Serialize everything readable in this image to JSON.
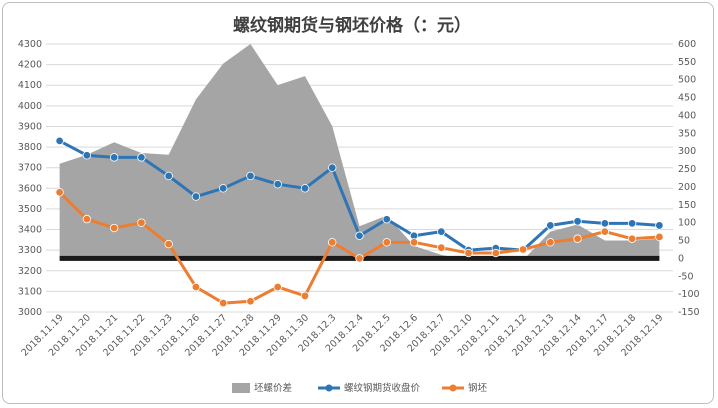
{
  "chart_data": {
    "type": "line",
    "title": "螺纹钢期货与钢坯价格（：元）",
    "categories": [
      "2018.11.19",
      "2018.11.20",
      "2018.11.21",
      "2018.11.22",
      "2018.11.23",
      "2018.11.26",
      "2018.11.27",
      "2018.11.28",
      "2018.11.29",
      "2018.11.30",
      "2018.12.3",
      "2018.12.4",
      "2018.12.5",
      "2018.12.6",
      "2018.12.7",
      "2018.12.10",
      "2018.12.11",
      "2018.12.12",
      "2018.12.13",
      "2018.12.14",
      "2018.12.17",
      "2018.12.18",
      "2018.12.19"
    ],
    "left_axis": {
      "min": 3000,
      "max": 4300,
      "step": 100
    },
    "right_axis": {
      "min": -150,
      "max": 600,
      "step": 50
    },
    "series": [
      {
        "name": "坯螺价差",
        "type": "area",
        "axis": "right",
        "color": "#a5a5a5",
        "values": [
          265,
          290,
          325,
          295,
          290,
          445,
          545,
          600,
          485,
          510,
          370,
          90,
          120,
          35,
          10,
          -5,
          -5,
          -5,
          75,
          95,
          50,
          50,
          55
        ]
      },
      {
        "name": "螺纹钢期货收盘价",
        "type": "line",
        "axis": "left",
        "color": "#2e75b6",
        "values": [
          3830,
          3760,
          3750,
          3750,
          3660,
          3560,
          3600,
          3660,
          3620,
          3600,
          3700,
          3370,
          3450,
          3370,
          3390,
          3300,
          3310,
          3300,
          3420,
          3440,
          3430,
          3430,
          3420
        ]
      },
      {
        "name": "钢坯",
        "type": "line",
        "axis": "right",
        "color": "#ed7d31",
        "values": [
          185,
          110,
          85,
          100,
          40,
          -80,
          -125,
          -120,
          -80,
          -105,
          45,
          0,
          45,
          45,
          30,
          15,
          15,
          25,
          45,
          55,
          75,
          55,
          60
        ]
      }
    ],
    "zero_band_color": "#1a1a1a",
    "grid": true,
    "legend_position": "bottom"
  }
}
